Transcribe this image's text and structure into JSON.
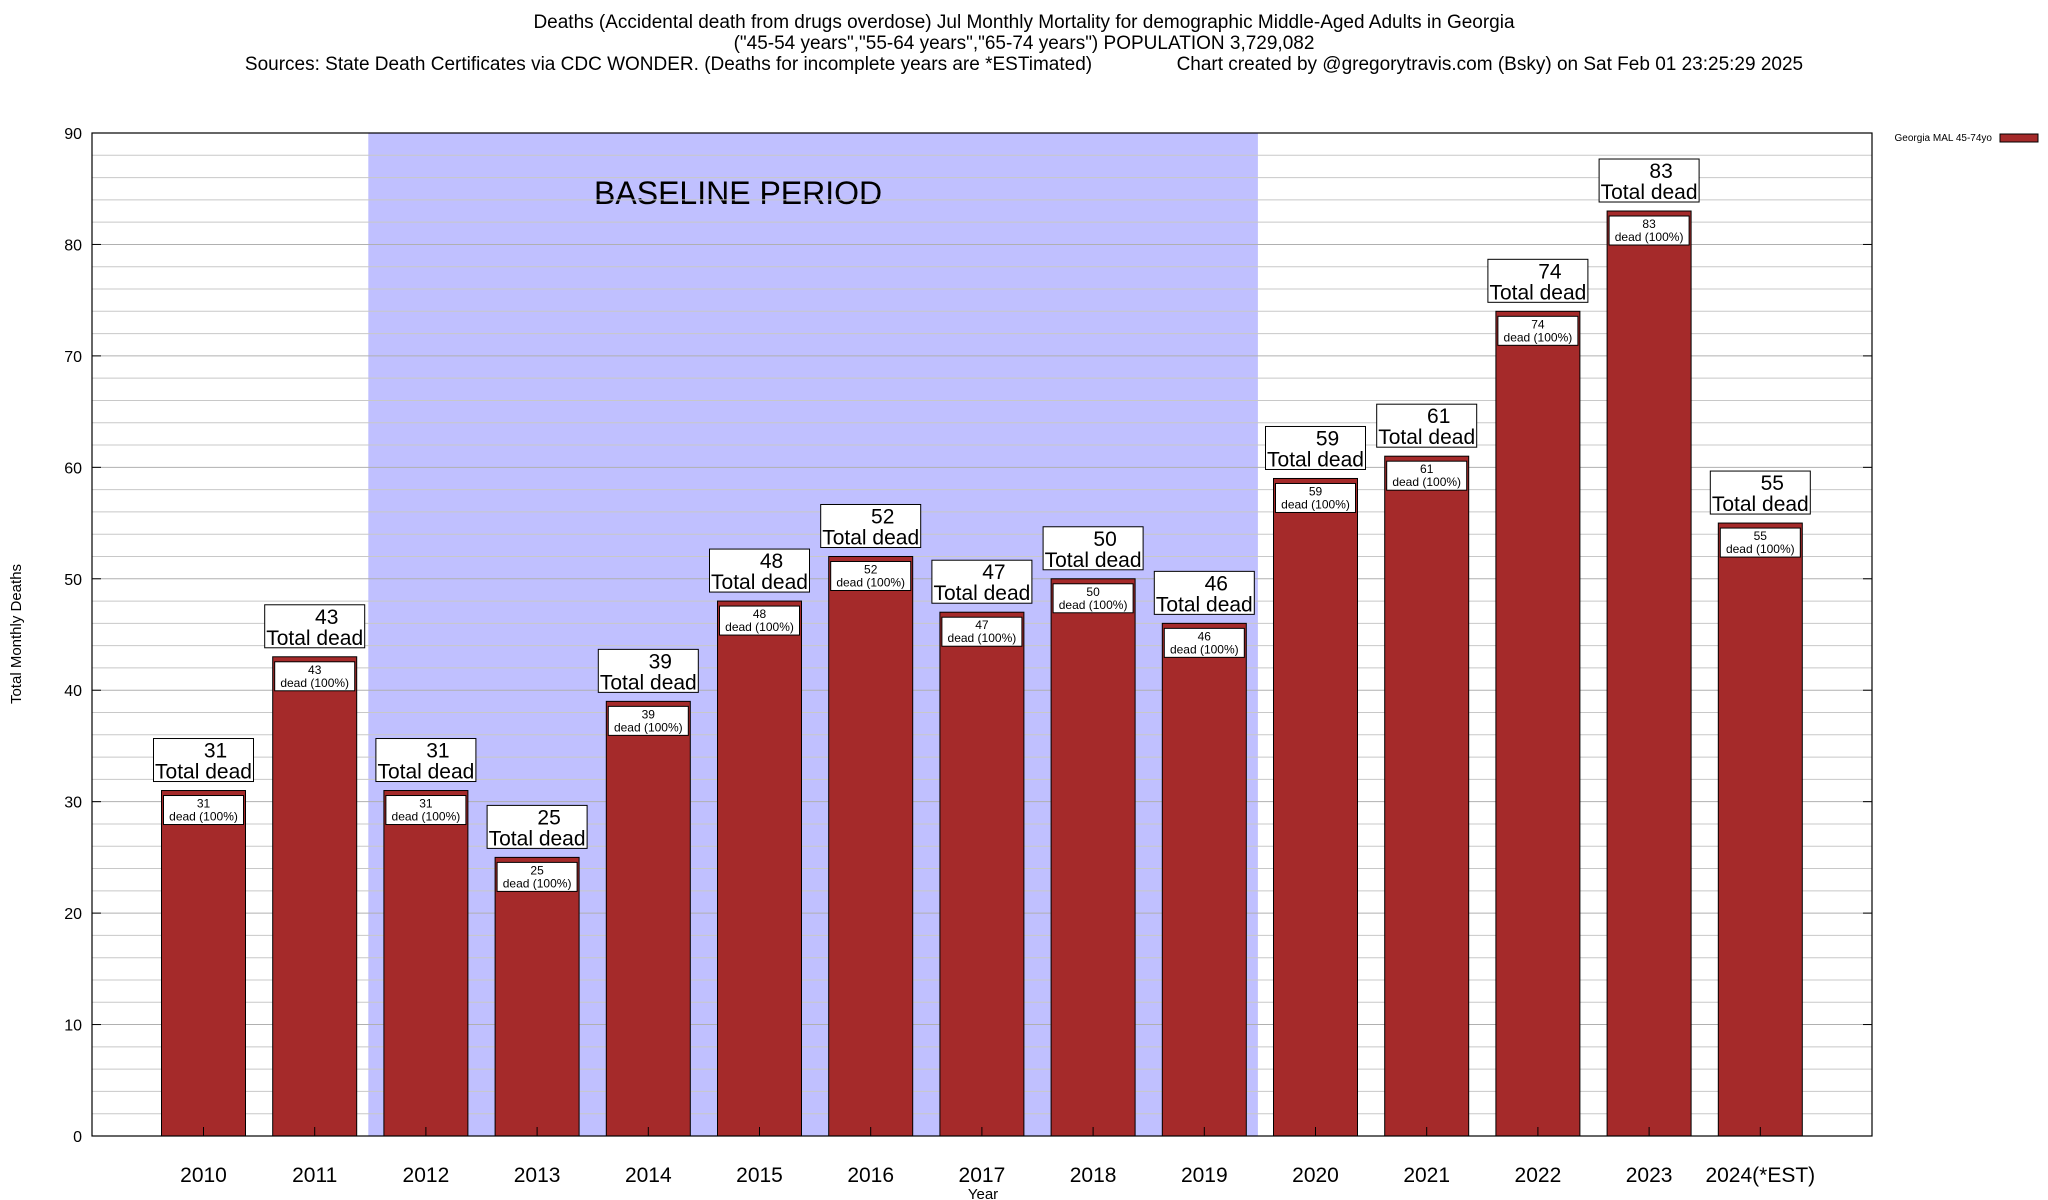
{
  "header": {
    "line1": "Deaths (Accidental death from drugs overdose) Jul Monthly Mortality for demographic Middle-Aged Adults in Georgia",
    "line2": "(\"45-54 years\",\"55-64 years\",\"65-74 years\") POPULATION 3,729,082",
    "line3_left": "Sources: State Death Certificates via CDC WONDER. (Deaths for incomplete years are *ESTimated)",
    "line3_right": "Chart created by @gregorytravis.com (Bsky) on Sat Feb 01 23:25:29 2025"
  },
  "chart_data": {
    "type": "bar",
    "title": "Deaths (Accidental death from drugs overdose) Jul Monthly Mortality for demographic Middle-Aged Adults in Georgia",
    "xlabel": "Year",
    "ylabel": "Total Monthly Deaths",
    "ylim": [
      0,
      90
    ],
    "y_ticks": [
      0,
      10,
      20,
      30,
      40,
      50,
      60,
      70,
      80,
      90
    ],
    "grid": true,
    "legend": {
      "label": "Georgia MAL 45-74yo",
      "color": "#a52a2a",
      "placement": "top-right"
    },
    "categories": [
      "2010",
      "2011",
      "2012",
      "2013",
      "2014",
      "2015",
      "2016",
      "2017",
      "2018",
      "2019",
      "2020",
      "2021",
      "2022",
      "2023",
      "2024(*EST)"
    ],
    "values": [
      31,
      43,
      31,
      25,
      39,
      48,
      52,
      47,
      50,
      46,
      59,
      61,
      74,
      83,
      55
    ],
    "total_label": "Total dead",
    "inner_label": "dead (100%)",
    "baseline": {
      "label": "BASELINE PERIOD",
      "from": "2012",
      "to": "2019",
      "color": "#c0c0ff"
    },
    "bar_color": "#a52a2a"
  }
}
